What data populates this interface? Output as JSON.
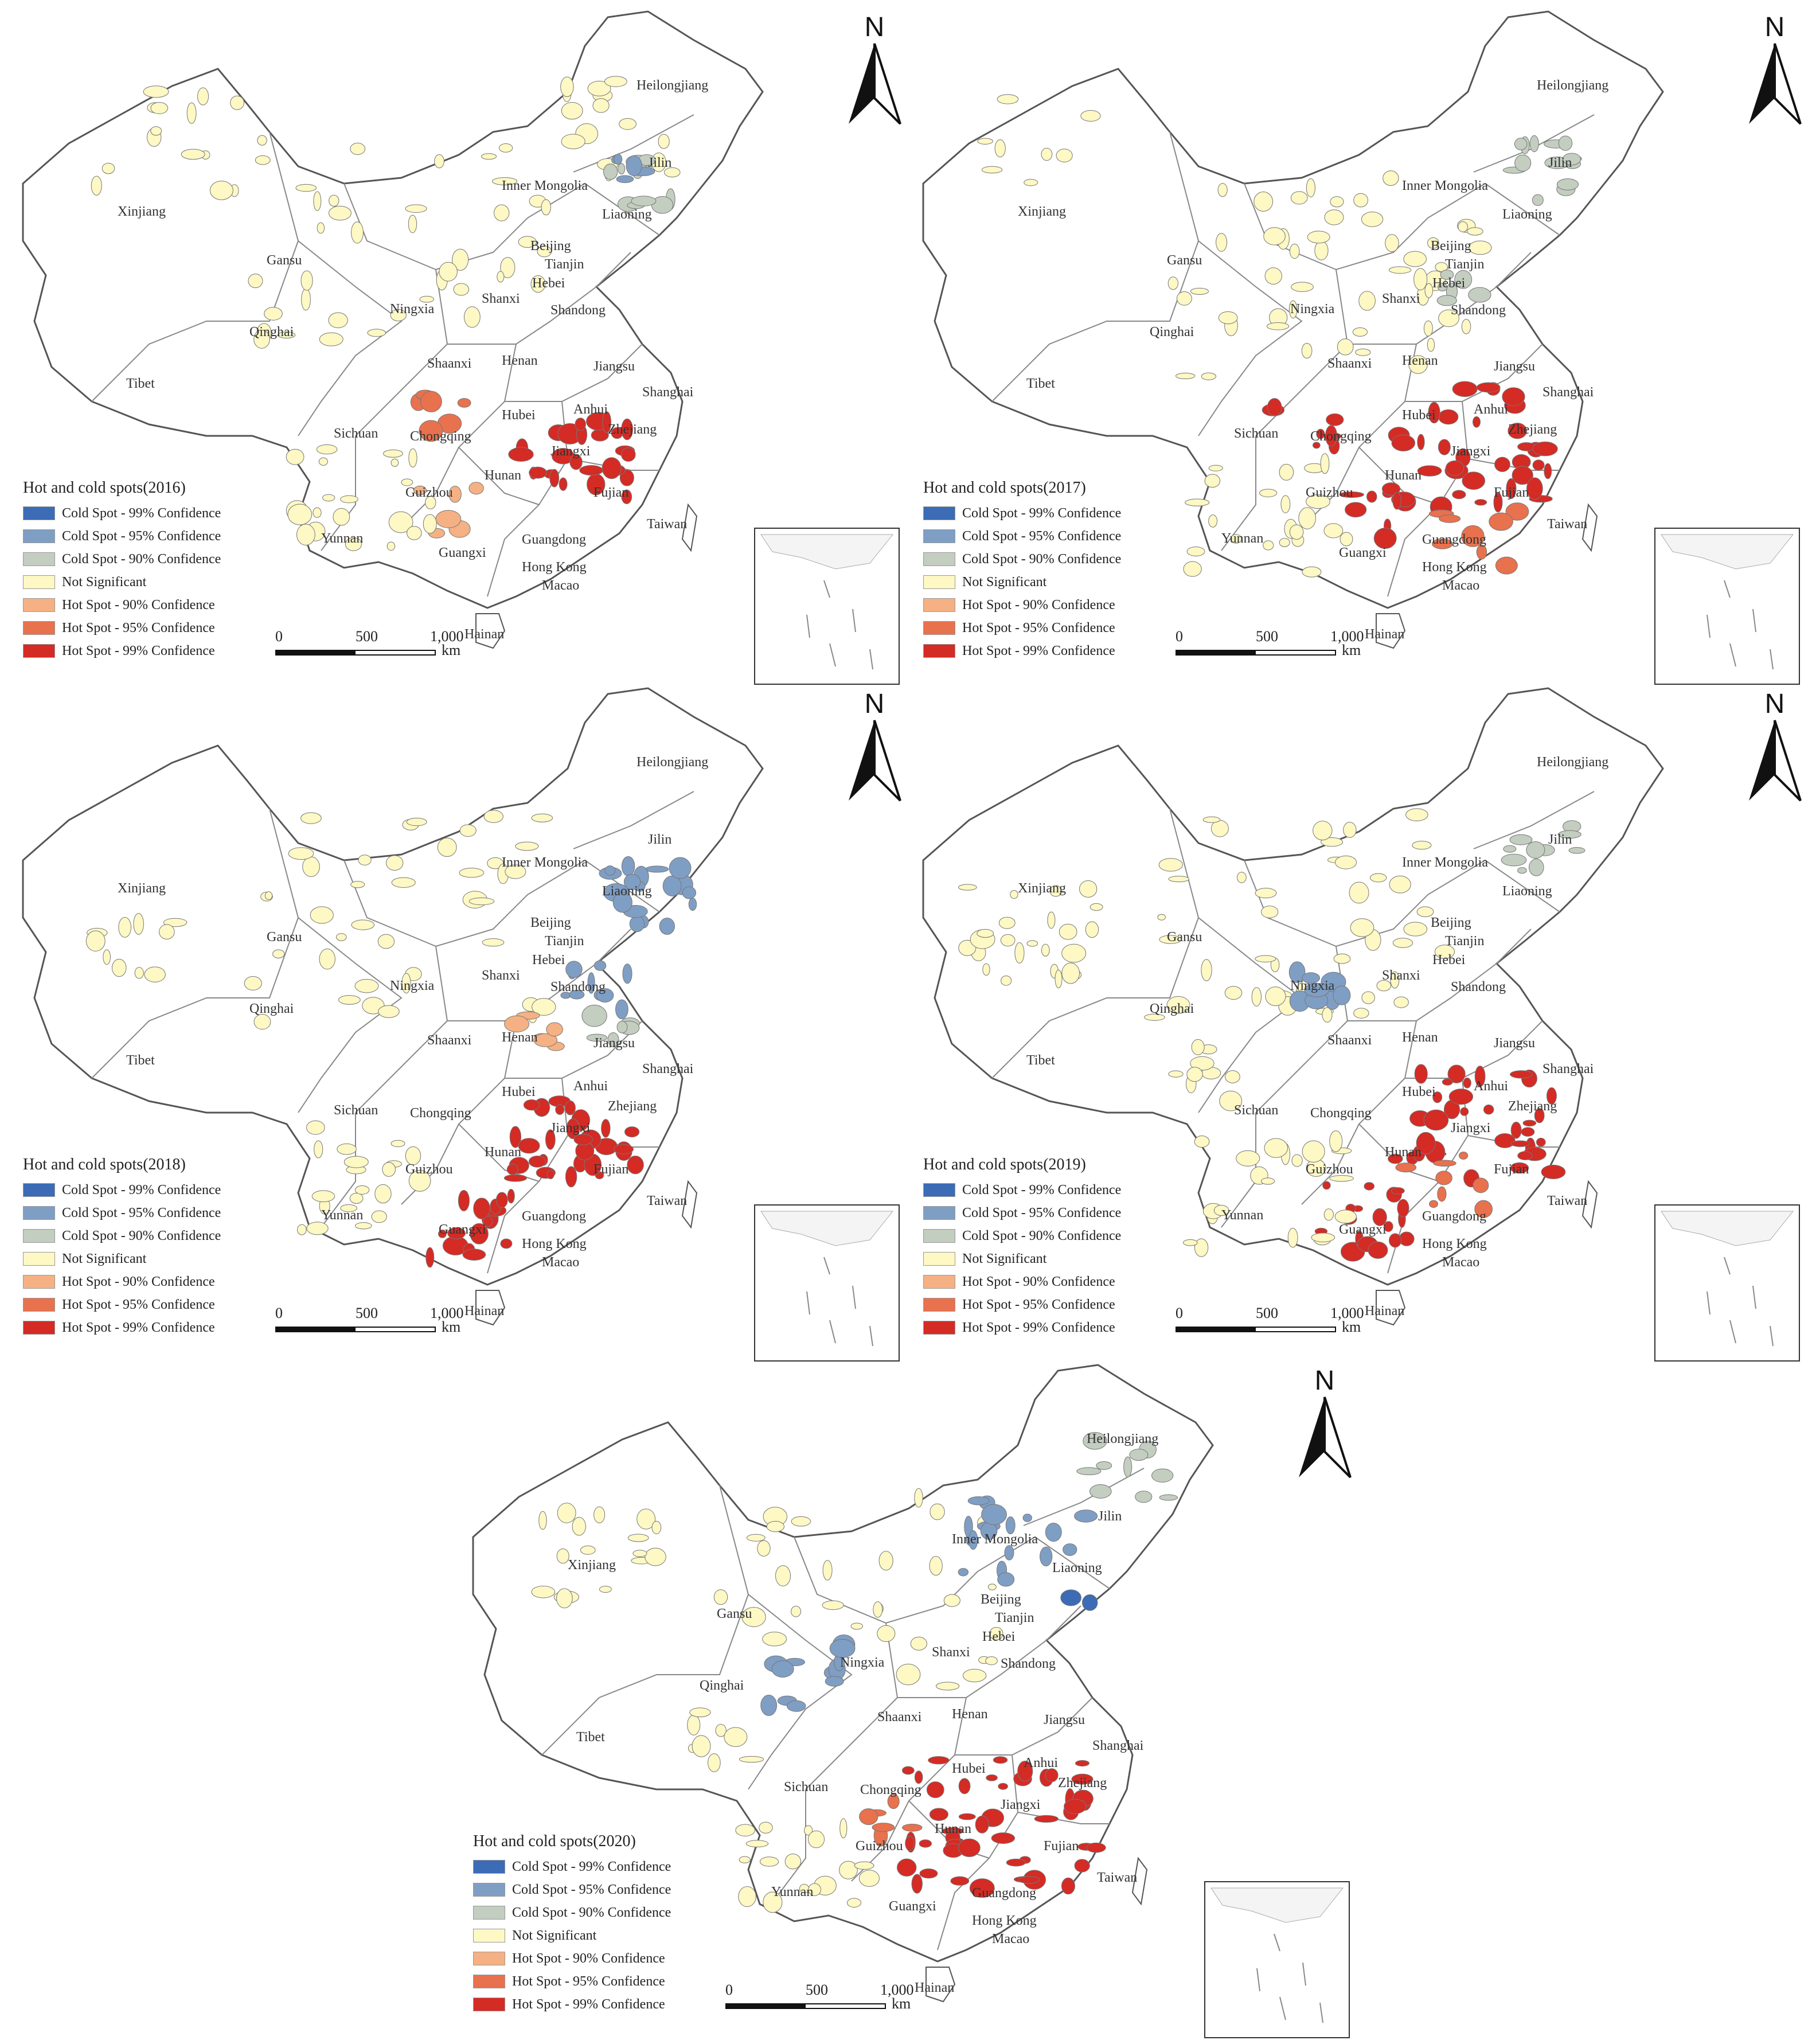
{
  "north_label": "N",
  "scale": {
    "ticks": [
      "0",
      "500",
      "1,000"
    ],
    "unit": "km"
  },
  "legend_labels": [
    "Cold Spot - 99% Confidence",
    "Cold Spot - 95% Confidence",
    "Cold Spot - 90% Confidence",
    "Not Significant",
    "Hot Spot - 90% Confidence",
    "Hot Spot - 95% Confidence",
    "Hot Spot - 99% Confidence"
  ],
  "legend_colors": [
    "#3b6cb5",
    "#7f9ec4",
    "#c3cdc0",
    "#fdf8c4",
    "#f5b183",
    "#e8714e",
    "#d42b25"
  ],
  "provinces": [
    "Heilongjiang",
    "Jilin",
    "Liaoning",
    "Inner Mongolia",
    "Xinjiang",
    "Gansu",
    "Beijing",
    "Tianjin",
    "Hebei",
    "Ningxia",
    "Shanxi",
    "Shandong",
    "Qinghai",
    "Shaanxi",
    "Henan",
    "Jiangsu",
    "Shanghai",
    "Tibet",
    "Anhui",
    "Hubei",
    "Zhejiang",
    "Sichuan",
    "Chongqing",
    "Jiangxi",
    "Hunan",
    "Fujian",
    "Guizhou",
    "Yunnan",
    "Guangdong",
    "Taiwan",
    "Guangxi",
    "Hong Kong",
    "Macao",
    "Hainan"
  ],
  "maps": [
    {
      "year": "2016",
      "title": "Hot and cold spots(2016)"
    },
    {
      "year": "2017",
      "title": "Hot and cold spots(2017)"
    },
    {
      "year": "2018",
      "title": "Hot and cold spots(2018)"
    },
    {
      "year": "2019",
      "title": "Hot and cold spots(2019)"
    },
    {
      "year": "2020",
      "title": "Hot and cold spots(2020)"
    }
  ]
}
